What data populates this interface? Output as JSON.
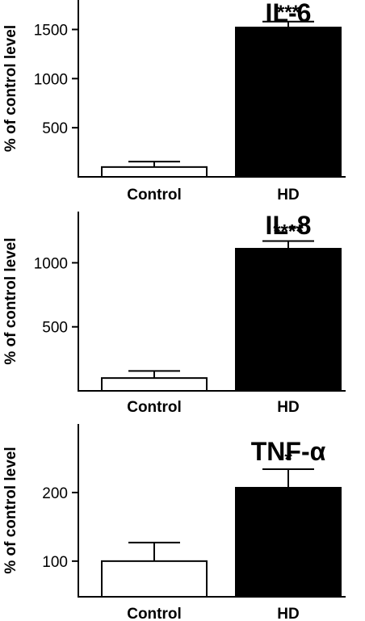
{
  "chart_data": [
    {
      "type": "bar",
      "title": "IL-6",
      "ylabel": "% of control level",
      "categories": [
        "Control",
        "HD"
      ],
      "values": [
        100,
        1520
      ],
      "errors": [
        55,
        60
      ],
      "significance": [
        "",
        "***"
      ],
      "ylim": [
        0,
        1800
      ],
      "yticks": [
        500,
        1000,
        1500
      ],
      "bar_colors": [
        "#ffffff",
        "#000000"
      ]
    },
    {
      "type": "bar",
      "title": "IL-8",
      "ylabel": "% of control level",
      "categories": [
        "Control",
        "HD"
      ],
      "values": [
        100,
        1110
      ],
      "errors": [
        55,
        60
      ],
      "significance": [
        "",
        "****"
      ],
      "ylim": [
        0,
        1400
      ],
      "yticks": [
        500,
        1000
      ],
      "bar_colors": [
        "#ffffff",
        "#000000"
      ]
    },
    {
      "type": "bar",
      "title": "TNF-α",
      "ylabel": "% of control level",
      "categories": [
        "Control",
        "HD"
      ],
      "values": [
        100,
        207
      ],
      "errors": [
        27,
        27
      ],
      "significance": [
        "",
        "*"
      ],
      "ylim": [
        48,
        300
      ],
      "yticks": [
        100,
        200
      ],
      "bar_colors": [
        "#ffffff",
        "#000000"
      ]
    }
  ]
}
